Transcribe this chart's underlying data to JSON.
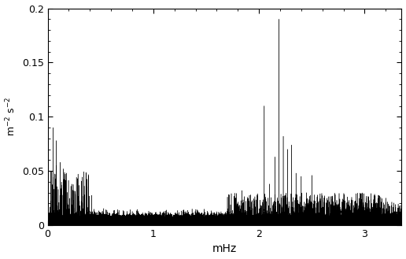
{
  "xlabel": "mHz",
  "ylabel": "m$^{-2}$ s$^{-2}$",
  "ylabel_text": "m⁻² s⁻²",
  "xlim": [
    0,
    3.35
  ],
  "ylim": [
    0,
    0.2
  ],
  "xticks": [
    0,
    1,
    2,
    3
  ],
  "yticks": [
    0,
    0.05,
    0.1,
    0.15,
    0.2
  ],
  "ytick_labels": [
    "0",
    "0.05",
    "0.1",
    "0.15",
    "0.2"
  ],
  "line_color": "#000000",
  "background_color": "#ffffff",
  "figsize": [
    5.16,
    3.29
  ],
  "dpi": 100,
  "seed": 42,
  "noise_baseline": 0.002,
  "noise_std": 0.003,
  "early_peaks": [
    {
      "freq": 0.05,
      "amp": 0.09
    },
    {
      "freq": 0.08,
      "amp": 0.078
    },
    {
      "freq": 0.12,
      "amp": 0.058
    },
    {
      "freq": 0.15,
      "amp": 0.052
    },
    {
      "freq": 0.18,
      "amp": 0.043
    },
    {
      "freq": 0.22,
      "amp": 0.036
    },
    {
      "freq": 0.1,
      "amp": 0.033
    },
    {
      "freq": 0.3,
      "amp": 0.022
    }
  ],
  "main_peaks": [
    {
      "freq": 1.84,
      "amp": 0.032
    },
    {
      "freq": 1.92,
      "amp": 0.028
    },
    {
      "freq": 2.05,
      "amp": 0.11
    },
    {
      "freq": 2.1,
      "amp": 0.038
    },
    {
      "freq": 2.15,
      "amp": 0.063
    },
    {
      "freq": 2.19,
      "amp": 0.19
    },
    {
      "freq": 2.23,
      "amp": 0.082
    },
    {
      "freq": 2.27,
      "amp": 0.07
    },
    {
      "freq": 2.31,
      "amp": 0.074
    },
    {
      "freq": 2.35,
      "amp": 0.048
    },
    {
      "freq": 2.4,
      "amp": 0.045
    },
    {
      "freq": 2.45,
      "amp": 0.03
    },
    {
      "freq": 2.5,
      "amp": 0.046
    },
    {
      "freq": 2.55,
      "amp": 0.026
    },
    {
      "freq": 2.6,
      "amp": 0.024
    },
    {
      "freq": 2.65,
      "amp": 0.023
    },
    {
      "freq": 2.7,
      "amp": 0.022
    }
  ]
}
